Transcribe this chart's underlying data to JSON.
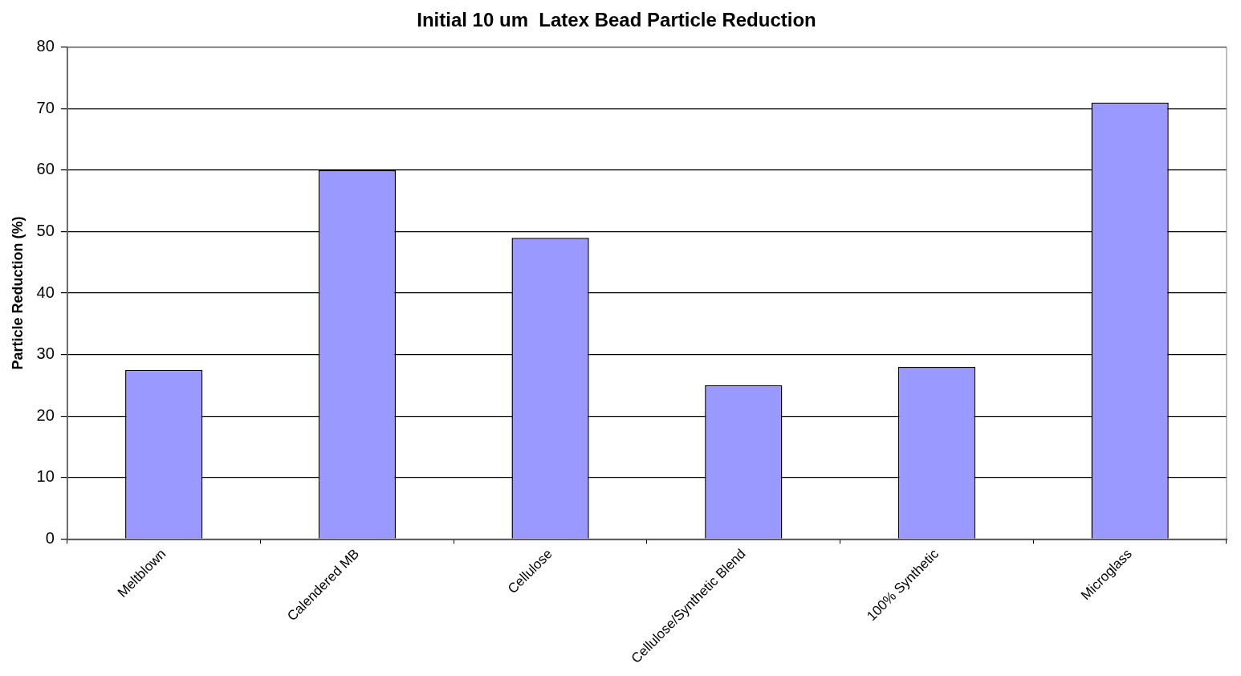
{
  "chart_data": {
    "type": "bar",
    "title": "Initial 10 um  Latex Bead Particle Reduction",
    "ylabel": "Particle Reduction (%)",
    "categories": [
      "Meltblown",
      "Calendered MB",
      "Cellulose",
      "Cellulose/Synthetic Blend",
      "100% Synthetic",
      "Microglass"
    ],
    "values": [
      27.5,
      60,
      49,
      25,
      28,
      71
    ],
    "color": "#9999ff",
    "ylim": [
      0,
      80
    ],
    "yticks": [
      0,
      10,
      20,
      30,
      40,
      50,
      60,
      70,
      80
    ],
    "grid": "y",
    "legend": false
  }
}
